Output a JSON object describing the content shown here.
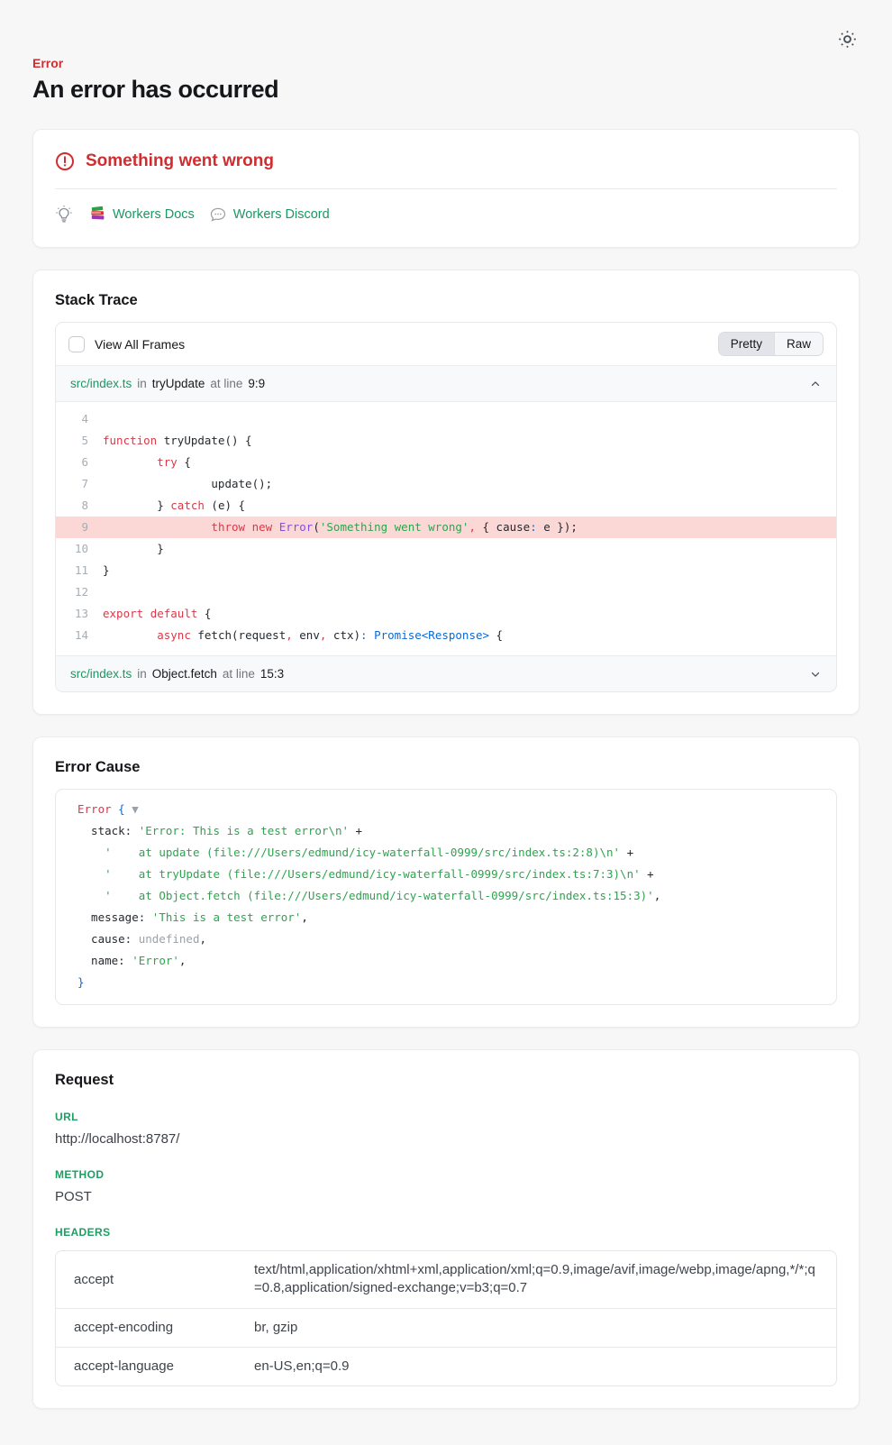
{
  "header": {
    "eyebrow": "Error",
    "title": "An error has occurred"
  },
  "alert_card": {
    "title": "Something went wrong",
    "docs_link": "Workers Docs",
    "discord_link": "Workers Discord"
  },
  "stack_trace": {
    "title": "Stack Trace",
    "view_all_frames": "View All Frames",
    "toggle": {
      "pretty": "Pretty",
      "raw": "Raw",
      "selected": "Pretty"
    },
    "frames": [
      {
        "file": "src/index.ts",
        "in": "in",
        "fn": "tryUpdate",
        "at": "at line",
        "loc": "9:9"
      },
      {
        "file": "src/index.ts",
        "in": "in",
        "fn": "Object.fetch",
        "at": "at line",
        "loc": "15:3"
      }
    ],
    "code": {
      "highlighted_line": 9,
      "lines": [
        {
          "n": 4,
          "hl": false,
          "t": []
        },
        {
          "n": 5,
          "hl": false,
          "t": [
            [
              "kw",
              "function"
            ],
            [
              "p",
              " tryUpdate() {"
            ]
          ]
        },
        {
          "n": 6,
          "hl": false,
          "t": [
            [
              "p",
              "        "
            ],
            [
              "kw",
              "try"
            ],
            [
              "p",
              " {"
            ]
          ]
        },
        {
          "n": 7,
          "hl": false,
          "t": [
            [
              "p",
              "                update();"
            ]
          ]
        },
        {
          "n": 8,
          "hl": false,
          "t": [
            [
              "p",
              "        } "
            ],
            [
              "kw",
              "catch"
            ],
            [
              "p",
              " (e) {"
            ]
          ]
        },
        {
          "n": 9,
          "hl": true,
          "t": [
            [
              "p",
              "                "
            ],
            [
              "kw",
              "throw"
            ],
            [
              "p",
              " "
            ],
            [
              "kw",
              "new"
            ],
            [
              "p",
              " "
            ],
            [
              "cls",
              "Error"
            ],
            [
              "p",
              "("
            ],
            [
              "str",
              "'Something went wrong'"
            ],
            [
              "rd",
              ","
            ],
            [
              "p",
              " { cause"
            ],
            [
              "bl",
              ":"
            ],
            [
              "p",
              " e });"
            ]
          ]
        },
        {
          "n": 10,
          "hl": false,
          "t": [
            [
              "p",
              "        }"
            ]
          ]
        },
        {
          "n": 11,
          "hl": false,
          "t": [
            [
              "p",
              "}"
            ]
          ]
        },
        {
          "n": 12,
          "hl": false,
          "t": []
        },
        {
          "n": 13,
          "hl": false,
          "t": [
            [
              "kw",
              "export"
            ],
            [
              "p",
              " "
            ],
            [
              "kw",
              "default"
            ],
            [
              "p",
              " {"
            ]
          ]
        },
        {
          "n": 14,
          "hl": false,
          "t": [
            [
              "p",
              "        "
            ],
            [
              "kw",
              "async"
            ],
            [
              "p",
              " fetch(request"
            ],
            [
              "rd",
              ","
            ],
            [
              "p",
              " env"
            ],
            [
              "rd",
              ","
            ],
            [
              "p",
              " ctx)"
            ],
            [
              "bl",
              ":"
            ],
            [
              "p",
              " "
            ],
            [
              "bl",
              "Promise<Response>"
            ],
            [
              "p",
              " {"
            ]
          ]
        }
      ]
    }
  },
  "error_cause": {
    "title": "Error Cause",
    "lines": [
      {
        "t": [
          [
            "rd",
            "Error"
          ],
          [
            "p",
            " "
          ],
          [
            "bl",
            "{"
          ],
          [
            "gr",
            " ▼"
          ]
        ]
      },
      {
        "t": [
          [
            "p",
            "  stack: "
          ],
          [
            "str",
            "'Error: This is a test error\\n'"
          ],
          [
            "p",
            " +"
          ]
        ]
      },
      {
        "t": [
          [
            "p",
            "    "
          ],
          [
            "str",
            "'    at update (file:///Users/edmund/icy-waterfall-0999/src/index.ts:2:8)\\n'"
          ],
          [
            "p",
            " +"
          ]
        ]
      },
      {
        "t": [
          [
            "p",
            "    "
          ],
          [
            "str",
            "'    at tryUpdate (file:///Users/edmund/icy-waterfall-0999/src/index.ts:7:3)\\n'"
          ],
          [
            "p",
            " +"
          ]
        ]
      },
      {
        "t": [
          [
            "p",
            "    "
          ],
          [
            "str",
            "'    at Object.fetch (file:///Users/edmund/icy-waterfall-0999/src/index.ts:15:3)'"
          ],
          [
            "p",
            ","
          ]
        ]
      },
      {
        "t": [
          [
            "p",
            "  message: "
          ],
          [
            "str",
            "'This is a test error'"
          ],
          [
            "p",
            ","
          ]
        ]
      },
      {
        "t": [
          [
            "p",
            "  cause: "
          ],
          [
            "gr",
            "undefined"
          ],
          [
            "p",
            ","
          ]
        ]
      },
      {
        "t": [
          [
            "p",
            "  name: "
          ],
          [
            "str",
            "'Error'"
          ],
          [
            "p",
            ","
          ]
        ]
      },
      {
        "t": [
          [
            "bl",
            "}"
          ]
        ]
      }
    ]
  },
  "request": {
    "title": "Request",
    "url_label": "URL",
    "url_value": "http://localhost:8787/",
    "method_label": "METHOD",
    "method_value": "POST",
    "headers_label": "HEADERS",
    "headers": [
      {
        "key": "accept",
        "value": "text/html,application/xhtml+xml,application/xml;q=0.9,image/avif,image/webp,image/apng,*/*;q=0.8,application/signed-exchange;v=b3;q=0.7"
      },
      {
        "key": "accept-encoding",
        "value": "br, gzip"
      },
      {
        "key": "accept-language",
        "value": "en-US,en;q=0.9"
      }
    ]
  },
  "colors": {
    "accent_red": "#cf2e31",
    "accent_green": "#1a9861",
    "code_keyword": "#d73a49",
    "code_string": "#2da44e",
    "code_class": "#8250df",
    "code_type": "#0b69d4",
    "highlight_row_bg": "#fbd8d6"
  }
}
